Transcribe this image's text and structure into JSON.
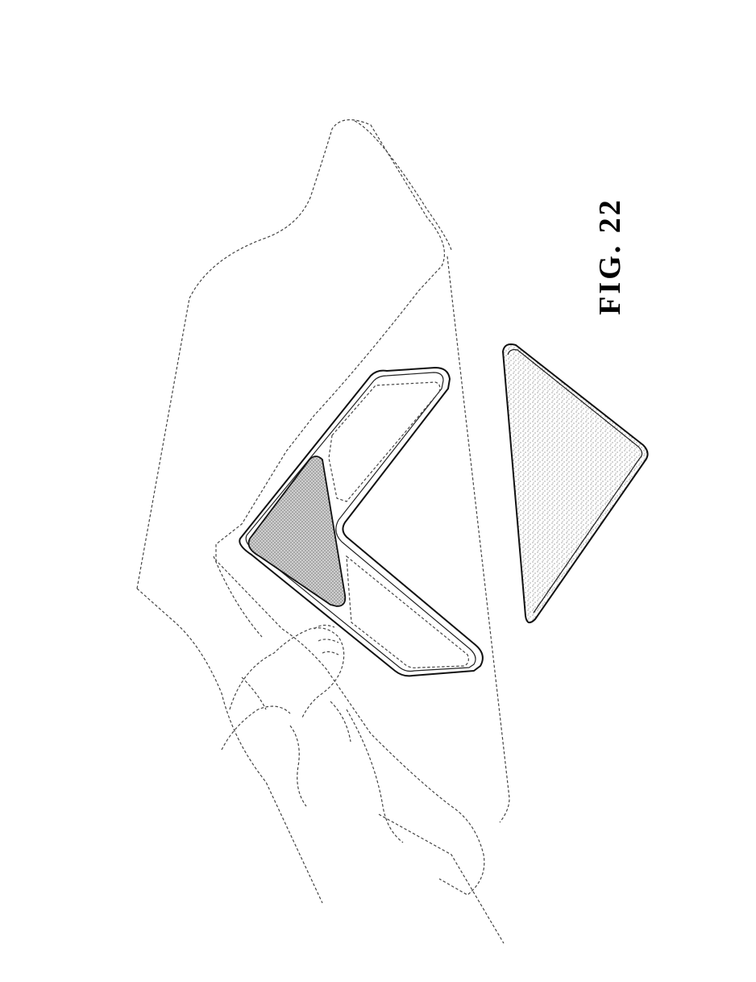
{
  "figure": {
    "label": "FIG. 22"
  }
}
